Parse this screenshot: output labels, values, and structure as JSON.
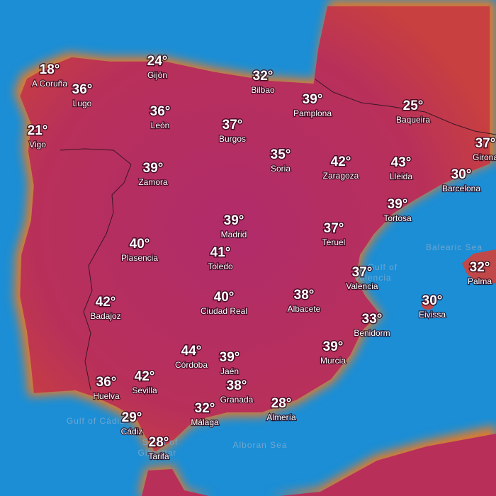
{
  "cities": [
    {
      "name": "A Coruña",
      "temp": "18°"
    },
    {
      "name": "Lugo",
      "temp": "36°"
    },
    {
      "name": "Gijón",
      "temp": "24°"
    },
    {
      "name": "Bilbao",
      "temp": "32°"
    },
    {
      "name": "Pamplona",
      "temp": "39°"
    },
    {
      "name": "Baqueira",
      "temp": "25°"
    },
    {
      "name": "León",
      "temp": "36°"
    },
    {
      "name": "Vigo",
      "temp": "21°"
    },
    {
      "name": "Burgos",
      "temp": "37°"
    },
    {
      "name": "Soria",
      "temp": "35°"
    },
    {
      "name": "Zaragoza",
      "temp": "42°"
    },
    {
      "name": "Lleida",
      "temp": "43°"
    },
    {
      "name": "Girona",
      "temp": "37°"
    },
    {
      "name": "Barcelona",
      "temp": "30°"
    },
    {
      "name": "Zamora",
      "temp": "39°"
    },
    {
      "name": "Tortosa",
      "temp": "39°"
    },
    {
      "name": "Madrid",
      "temp": "39°"
    },
    {
      "name": "Teruel",
      "temp": "37°"
    },
    {
      "name": "Plasencia",
      "temp": "40°"
    },
    {
      "name": "Toledo",
      "temp": "41°"
    },
    {
      "name": "Valencia",
      "temp": "37°"
    },
    {
      "name": "Palma",
      "temp": "32°"
    },
    {
      "name": "Badajoz",
      "temp": "42°"
    },
    {
      "name": "Ciudad Real",
      "temp": "40°"
    },
    {
      "name": "Albacete",
      "temp": "38°"
    },
    {
      "name": "Eivissa",
      "temp": "30°"
    },
    {
      "name": "Benidorm",
      "temp": "33°"
    },
    {
      "name": "Córdoba",
      "temp": "44°"
    },
    {
      "name": "Jaén",
      "temp": "39°"
    },
    {
      "name": "Murcia",
      "temp": "39°"
    },
    {
      "name": "Huelva",
      "temp": "36°"
    },
    {
      "name": "Sevilla",
      "temp": "42°"
    },
    {
      "name": "Granada",
      "temp": "38°"
    },
    {
      "name": "Málaga",
      "temp": "32°"
    },
    {
      "name": "Almería",
      "temp": "28°"
    },
    {
      "name": "Cádiz",
      "temp": "29°"
    },
    {
      "name": "Tarifa",
      "temp": "28°"
    }
  ],
  "seas": [
    "Balearic Sea",
    "Gulf of",
    "Valencia",
    "Gulf of Cádiz",
    "Strait of",
    "Gibraltar",
    "Alboran Sea"
  ]
}
